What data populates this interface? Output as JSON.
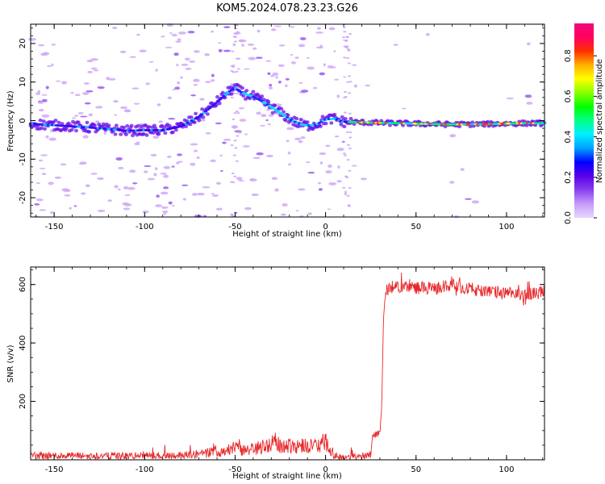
{
  "figure": {
    "title": "KOM5.2024.078.23.23.G26"
  },
  "chart_data": [
    {
      "type": "heatmap",
      "xlabel": "Height of straight line (km)",
      "ylabel": "Frequency (Hz)",
      "xlim": [
        -163,
        121
      ],
      "ylim": [
        -25,
        25
      ],
      "xticks": [
        -150,
        -100,
        -50,
        0,
        50,
        100
      ],
      "yticks": [
        -20,
        -10,
        0,
        10,
        20
      ],
      "xtick_labels": [
        "-150",
        "-100",
        "-50",
        "0",
        "50",
        "100"
      ],
      "ytick_labels": [
        "-20",
        "-10",
        "0",
        "10",
        "20"
      ],
      "ridge": {
        "x": [
          -163,
          -150,
          -140,
          -130,
          -120,
          -110,
          -100,
          -90,
          -80,
          -70,
          -62,
          -56,
          -52,
          -50,
          -48,
          -45,
          -40,
          -35,
          -30,
          -25,
          -20,
          -15,
          -10,
          -5,
          0,
          5,
          10,
          15,
          30,
          50,
          70,
          90,
          110,
          121
        ],
        "y": [
          -0.8,
          -1.2,
          -1.5,
          -1.8,
          -2.2,
          -2.6,
          -2.5,
          -2.5,
          -1.5,
          1.0,
          4.0,
          6.5,
          8.0,
          8.5,
          7.8,
          7.0,
          6.2,
          5.0,
          3.5,
          2.0,
          0.5,
          -0.8,
          -1.3,
          -1.0,
          0.3,
          0.5,
          -0.3,
          -0.4,
          -0.6,
          -0.8,
          -1.0,
          -0.9,
          -0.7,
          -0.7
        ]
      },
      "colorbar": {
        "label": "Normalized spectral amplitude",
        "range": [
          0,
          0.96
        ],
        "ticks": [
          0.0,
          0.2,
          0.4,
          0.6,
          0.8
        ],
        "tick_labels": [
          "0.0",
          "0.2",
          "0.4",
          "0.6",
          "0.8"
        ],
        "colors": [
          "#e6d6ff",
          "#c79cf7",
          "#8a40f0",
          "#5a00e8",
          "#0000ff",
          "#00a0ff",
          "#00f0ff",
          "#00ff88",
          "#00ff00",
          "#88ff00",
          "#ffff00",
          "#ffb000",
          "#ff3000",
          "#ff0060",
          "#f0087a"
        ]
      }
    },
    {
      "type": "line",
      "xlabel": "Height of straight line (km)",
      "ylabel": "SNR (v/v)",
      "xlim": [
        -163,
        121
      ],
      "ylim": [
        0,
        660
      ],
      "xticks": [
        -150,
        -100,
        -50,
        0,
        50,
        100
      ],
      "yticks": [
        200,
        400,
        600
      ],
      "xtick_labels": [
        "-150",
        "-100",
        "-50",
        "0",
        "50",
        "100"
      ],
      "ytick_labels": [
        "200",
        "400",
        "600"
      ],
      "color": "#e8282a",
      "series": [
        {
          "x": [
            -163,
            -150,
            -140,
            -130,
            -120,
            -110,
            -100,
            -90,
            -80,
            -70,
            -60,
            -55,
            -50,
            -45,
            -40,
            -35,
            -30,
            -28,
            -25,
            -20,
            -15,
            -10,
            -5,
            0,
            5,
            10,
            15,
            20,
            25,
            26,
            30,
            31,
            32,
            33,
            35,
            40,
            50,
            60,
            70,
            80,
            90,
            100,
            110,
            121
          ],
          "y": [
            15,
            14,
            14,
            13,
            14,
            13,
            14,
            15,
            16,
            20,
            28,
            33,
            42,
            30,
            38,
            45,
            55,
            62,
            45,
            50,
            48,
            50,
            45,
            60,
            15,
            8,
            10,
            10,
            22,
            85,
            90,
            180,
            480,
            570,
            590,
            595,
            590,
            585,
            600,
            585,
            575,
            570,
            565,
            575
          ]
        }
      ]
    }
  ]
}
